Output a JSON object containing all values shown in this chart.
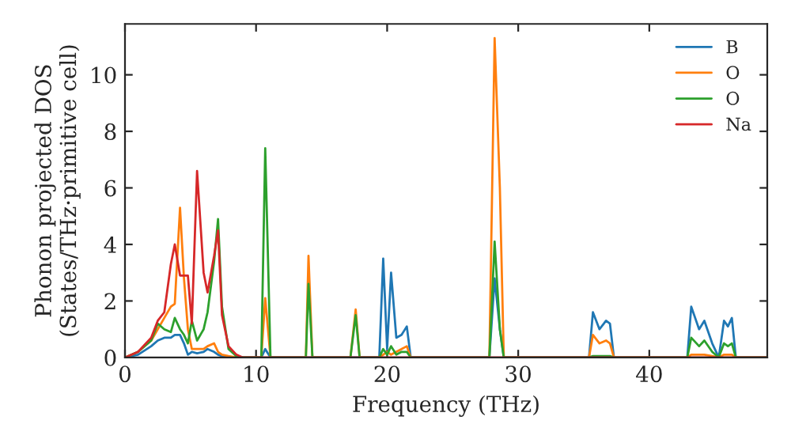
{
  "chart_data": {
    "type": "line",
    "xlabel": "Frequency (THz)",
    "ylabel": "Phonon projected DOS\n(States/THz·primitive cell)",
    "x": [
      0,
      1,
      2,
      2.5,
      3,
      3.5,
      3.8,
      4.2,
      4.5,
      4.8,
      5.1,
      5.5,
      6.0,
      6.3,
      6.8,
      7.1,
      7.4,
      7.9,
      8.5,
      9,
      10.4,
      10.7,
      11.1,
      13.8,
      14.0,
      14.3,
      17.2,
      17.6,
      17.9,
      19.4,
      19.7,
      20.0,
      20.3,
      20.7,
      21.1,
      21.5,
      21.8,
      27.8,
      28.2,
      28.6,
      28.9,
      35.4,
      35.7,
      36.2,
      36.7,
      37.0,
      37.3,
      42.9,
      43.2,
      43.8,
      44.2,
      44.8,
      45.3,
      45.7,
      46.0,
      46.3,
      46.6,
      49
    ],
    "series": [
      {
        "name": "B",
        "color": "#1f77b4",
        "values": [
          0,
          0.1,
          0.4,
          0.6,
          0.7,
          0.7,
          0.8,
          0.8,
          0.5,
          0.1,
          0.2,
          0.15,
          0.2,
          0.3,
          0.2,
          0.1,
          0.05,
          0,
          0,
          0,
          0,
          0.3,
          0,
          0,
          0,
          0,
          0,
          null,
          0,
          0,
          3.5,
          0.3,
          3.0,
          0.7,
          0.8,
          1.1,
          0,
          0,
          2.8,
          1.0,
          0,
          0,
          1.6,
          1.0,
          1.3,
          1.2,
          0,
          0,
          1.8,
          1.0,
          1.3,
          0.5,
          0,
          1.3,
          1.1,
          1.4,
          0,
          0
        ]
      },
      {
        "name": "O",
        "color": "#ff7f0e",
        "values": [
          0,
          0.2,
          0.6,
          1.0,
          1.4,
          1.8,
          1.9,
          5.3,
          2.8,
          1.0,
          0.3,
          0.3,
          0.3,
          0.4,
          0.5,
          0.2,
          0.1,
          0.05,
          0,
          0,
          0,
          2.1,
          0,
          0,
          3.6,
          0,
          0,
          1.7,
          0,
          0,
          0.1,
          0.2,
          0.1,
          0.2,
          0.3,
          0.4,
          0,
          0,
          11.3,
          6.0,
          0,
          0,
          0.8,
          0.5,
          0.6,
          0.5,
          0,
          0,
          0.1,
          0.1,
          0.1,
          0.05,
          0,
          0.1,
          0.1,
          0.1,
          0,
          0
        ]
      },
      {
        "name": "O",
        "color": "#2ca02c",
        "values": [
          0,
          0.2,
          0.6,
          1.2,
          1.0,
          0.9,
          1.4,
          1.0,
          0.8,
          0.5,
          1.3,
          0.6,
          1.0,
          1.6,
          3.4,
          4.9,
          1.8,
          0.3,
          0.05,
          0,
          0,
          7.4,
          0,
          0,
          2.6,
          0,
          0,
          1.5,
          0,
          0,
          0.3,
          0.1,
          0.4,
          0.1,
          0.2,
          0.2,
          0,
          0,
          4.1,
          1.0,
          0,
          0,
          0.05,
          0.05,
          0.05,
          0.05,
          0,
          0,
          0.7,
          0.4,
          0.6,
          0.2,
          0,
          0.5,
          0.4,
          0.5,
          0,
          0
        ]
      },
      {
        "name": "Na",
        "color": "#d62728",
        "values": [
          0,
          0.2,
          0.7,
          1.3,
          1.6,
          3.3,
          4.0,
          2.9,
          2.9,
          2.9,
          1.2,
          6.6,
          3.0,
          2.3,
          3.6,
          4.5,
          1.5,
          0.4,
          0.1,
          0,
          0,
          0,
          0,
          0,
          0,
          0,
          0,
          0,
          0,
          0,
          0,
          0,
          0,
          0,
          0,
          0,
          0,
          0,
          0,
          0,
          0,
          0,
          0,
          0,
          0,
          0,
          0,
          0,
          0,
          0,
          0,
          0,
          0,
          0,
          0,
          0,
          0,
          0
        ]
      }
    ],
    "xlim": [
      0,
      49
    ],
    "ylim": [
      0,
      11.8
    ],
    "xticks": [
      0,
      10,
      20,
      30,
      40
    ],
    "yticks": [
      0,
      2,
      4,
      6,
      8,
      10
    ],
    "legend": "top right",
    "grid": false
  }
}
